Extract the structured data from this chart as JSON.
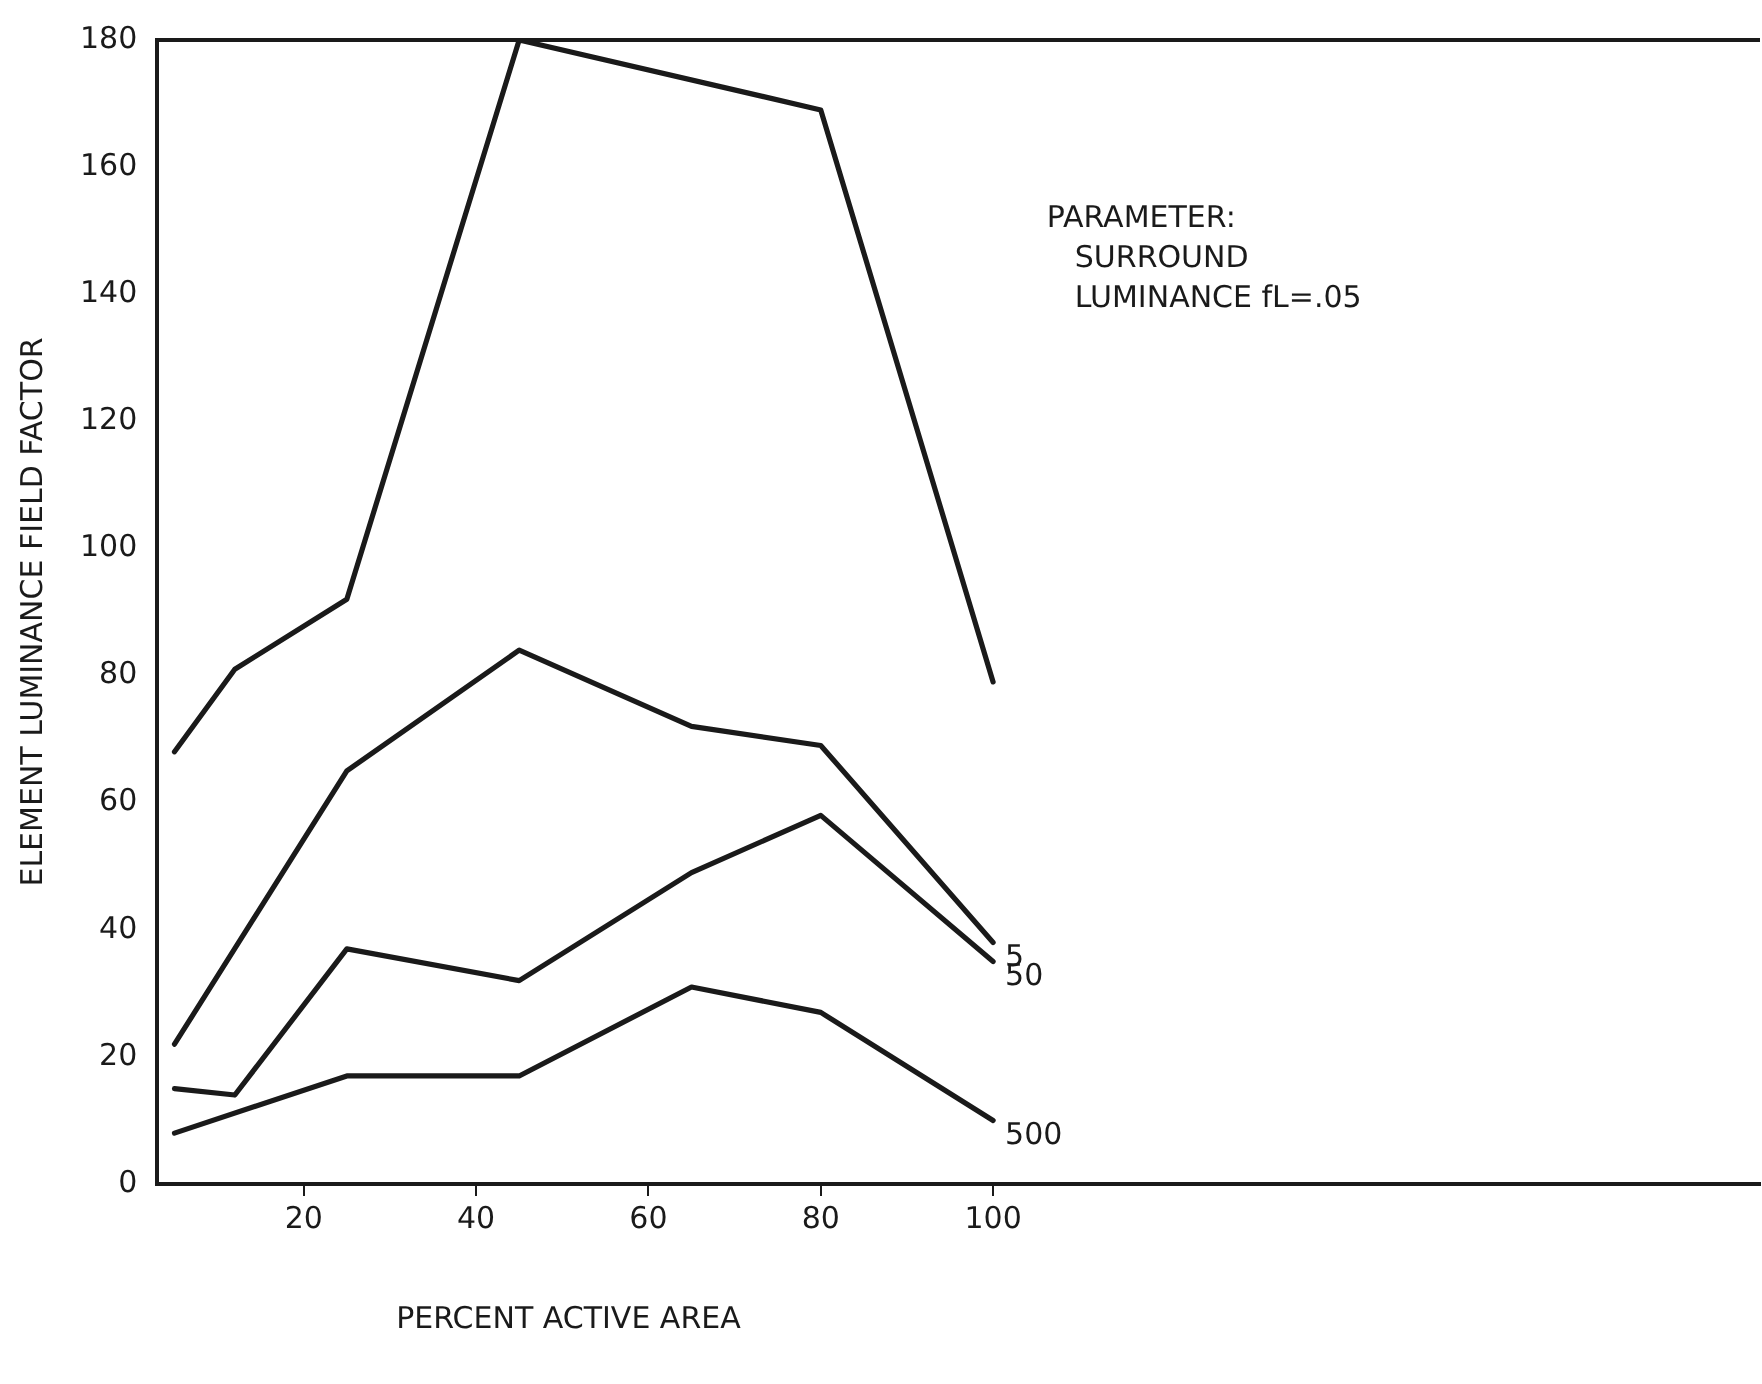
{
  "chart_data": {
    "type": "line",
    "xlabel": "PERCENT ACTIVE AREA",
    "ylabel": "ELEMENT LUMINANCE FIELD FACTOR",
    "xlim": [
      3,
      189
    ],
    "xticks": [
      20,
      40,
      60,
      80,
      100
    ],
    "ylim": [
      0,
      180
    ],
    "yticks": [
      0,
      20,
      40,
      60,
      80,
      100,
      120,
      140,
      160,
      180
    ],
    "grid": false,
    "legend": false,
    "marker": "none",
    "line_style": "solid",
    "series": [
      {
        "color": "#1a1a1a",
        "x": [
          5,
          12,
          25,
          45,
          80,
          100
        ],
        "values": [
          68,
          81,
          92,
          180,
          169,
          79
        ]
      },
      {
        "name": "5",
        "color": "#1a1a1a",
        "x": [
          5,
          25,
          45,
          65,
          80,
          100
        ],
        "values": [
          22,
          65,
          84,
          72,
          69,
          38
        ]
      },
      {
        "name": "50",
        "color": "#1a1a1a",
        "x": [
          5,
          12,
          25,
          45,
          65,
          80,
          100
        ],
        "values": [
          15,
          14,
          37,
          32,
          49,
          58,
          35
        ]
      },
      {
        "name": "500",
        "color": "#1a1a1a",
        "x": [
          5,
          25,
          45,
          65,
          80,
          100
        ],
        "values": [
          8,
          17,
          17,
          31,
          27,
          10
        ]
      }
    ],
    "annotations": [
      "PARAMETER:",
      "SURROUND",
      "LUMINANCE fL=.05"
    ]
  }
}
